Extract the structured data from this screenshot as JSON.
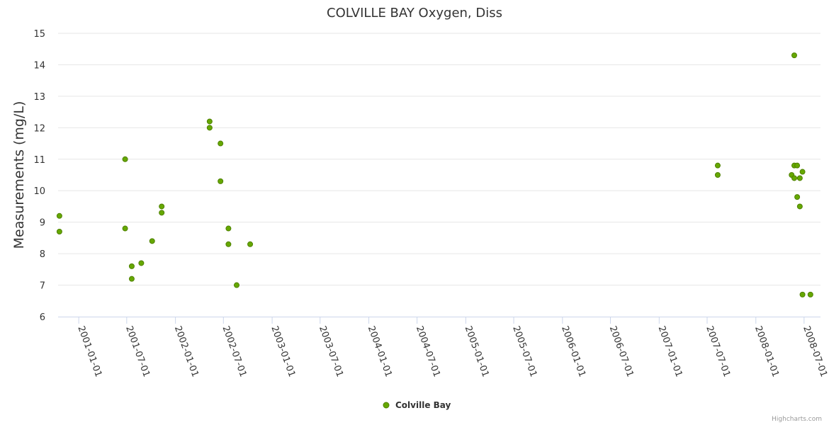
{
  "chart_data": {
    "type": "scatter",
    "title": "COLVILLE BAY Oxygen, Diss",
    "ylabel": "Measurements (mg/L)",
    "xlabel": "",
    "ylim": [
      6,
      15
    ],
    "yticks": [
      "6",
      "7",
      "8",
      "9",
      "10",
      "11",
      "12",
      "13",
      "14",
      "15"
    ],
    "xlim": [
      "2000-10-15",
      "2008-09-01"
    ],
    "xticks": [
      "2001-01-01",
      "2001-07-01",
      "2002-01-01",
      "2002-07-01",
      "2003-01-01",
      "2003-07-01",
      "2004-01-01",
      "2004-07-01",
      "2005-01-01",
      "2005-07-01",
      "2006-01-01",
      "2006-07-01",
      "2007-01-01",
      "2007-07-01",
      "2008-01-01",
      "2008-07-01"
    ],
    "series": [
      {
        "name": "Colville Bay",
        "color": "#66a800",
        "points": [
          {
            "x": "2000-10-20",
            "y": 9.2
          },
          {
            "x": "2000-10-20",
            "y": 8.7
          },
          {
            "x": "2001-06-25",
            "y": 11.0
          },
          {
            "x": "2001-06-25",
            "y": 8.8
          },
          {
            "x": "2001-07-20",
            "y": 7.6
          },
          {
            "x": "2001-07-20",
            "y": 7.2
          },
          {
            "x": "2001-08-25",
            "y": 7.7
          },
          {
            "x": "2001-10-05",
            "y": 8.4
          },
          {
            "x": "2001-11-10",
            "y": 9.5
          },
          {
            "x": "2001-11-10",
            "y": 9.3
          },
          {
            "x": "2002-05-10",
            "y": 12.2
          },
          {
            "x": "2002-05-10",
            "y": 12.0
          },
          {
            "x": "2002-06-20",
            "y": 11.5
          },
          {
            "x": "2002-06-20",
            "y": 10.3
          },
          {
            "x": "2002-07-20",
            "y": 8.8
          },
          {
            "x": "2002-07-20",
            "y": 8.3
          },
          {
            "x": "2002-08-20",
            "y": 7.0
          },
          {
            "x": "2002-10-10",
            "y": 8.3
          },
          {
            "x": "2007-08-10",
            "y": 10.8
          },
          {
            "x": "2007-08-10",
            "y": 10.5
          },
          {
            "x": "2008-05-15",
            "y": 10.5
          },
          {
            "x": "2008-05-25",
            "y": 14.3
          },
          {
            "x": "2008-05-25",
            "y": 10.8
          },
          {
            "x": "2008-05-25",
            "y": 10.4
          },
          {
            "x": "2008-06-05",
            "y": 10.8
          },
          {
            "x": "2008-06-05",
            "y": 9.8
          },
          {
            "x": "2008-06-15",
            "y": 10.4
          },
          {
            "x": "2008-06-15",
            "y": 9.5
          },
          {
            "x": "2008-06-25",
            "y": 10.6
          },
          {
            "x": "2008-06-25",
            "y": 6.7
          },
          {
            "x": "2008-07-25",
            "y": 6.7
          }
        ]
      }
    ],
    "legend": "bottom-center",
    "credits": "Highcharts.com"
  }
}
